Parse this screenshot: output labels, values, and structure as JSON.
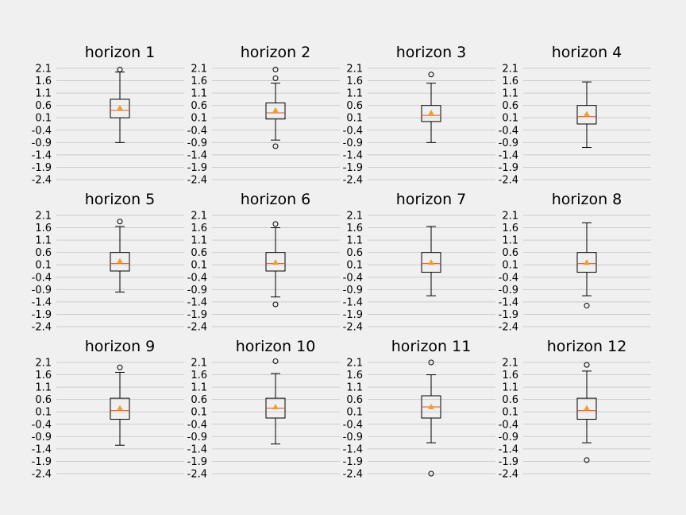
{
  "chart_data": [
    {
      "type": "box",
      "title": "horizon 1",
      "yticks": [
        "2.1",
        "1.6",
        "1.1",
        "0.6",
        "0.1",
        "-0.4",
        "-0.9",
        "-1.4",
        "-1.9",
        "-2.4"
      ],
      "ylim": [
        -2.4,
        2.1
      ],
      "whisker_low": -0.9,
      "q1": 0.1,
      "median": 0.4,
      "q3": 0.85,
      "whisker_high": 1.95,
      "mean": 0.5,
      "outliers": [
        2.05
      ]
    },
    {
      "type": "box",
      "title": "horizon 2",
      "yticks": [
        "2.1",
        "1.6",
        "1.1",
        "0.6",
        "0.1",
        "-0.4",
        "-0.9",
        "-1.4",
        "-1.9",
        "-2.4"
      ],
      "ylim": [
        -2.4,
        2.1
      ],
      "whisker_low": -0.8,
      "q1": 0.05,
      "median": 0.3,
      "q3": 0.7,
      "whisker_high": 1.5,
      "mean": 0.4,
      "outliers": [
        2.05,
        1.7,
        -1.05
      ]
    },
    {
      "type": "box",
      "title": "horizon 3",
      "yticks": [
        "2.1",
        "1.6",
        "1.1",
        "0.6",
        "0.1",
        "-0.4",
        "-0.9",
        "-1.4",
        "-1.9",
        "-2.4"
      ],
      "ylim": [
        -2.4,
        2.1
      ],
      "whisker_low": -0.9,
      "q1": -0.05,
      "median": 0.2,
      "q3": 0.6,
      "whisker_high": 1.5,
      "mean": 0.3,
      "outliers": [
        1.85
      ]
    },
    {
      "type": "box",
      "title": "horizon 4",
      "yticks": [
        "2.1",
        "1.6",
        "1.1",
        "0.6",
        "0.1",
        "-0.4",
        "-0.9",
        "-1.4",
        "-1.9",
        "-2.4"
      ],
      "ylim": [
        -2.4,
        2.1
      ],
      "whisker_low": -1.1,
      "q1": -0.15,
      "median": 0.15,
      "q3": 0.6,
      "whisker_high": 1.55,
      "mean": 0.25,
      "outliers": []
    },
    {
      "type": "box",
      "title": "horizon 5",
      "yticks": [
        "2.1",
        "1.6",
        "1.1",
        "0.6",
        "0.1",
        "-0.4",
        "-0.9",
        "-1.4",
        "-1.9",
        "-2.4"
      ],
      "ylim": [
        -2.4,
        2.1
      ],
      "whisker_low": -1.0,
      "q1": -0.15,
      "median": 0.15,
      "q3": 0.6,
      "whisker_high": 1.65,
      "mean": 0.25,
      "outliers": [
        1.85
      ]
    },
    {
      "type": "box",
      "title": "horizon 6",
      "yticks": [
        "2.1",
        "1.6",
        "1.1",
        "0.6",
        "0.1",
        "-0.4",
        "-0.9",
        "-1.4",
        "-1.9",
        "-2.4"
      ],
      "ylim": [
        -2.4,
        2.1
      ],
      "whisker_low": -1.2,
      "q1": -0.15,
      "median": 0.15,
      "q3": 0.6,
      "whisker_high": 1.6,
      "mean": 0.2,
      "outliers": [
        1.75,
        -1.5
      ]
    },
    {
      "type": "box",
      "title": "horizon 7",
      "yticks": [
        "2.1",
        "1.6",
        "1.1",
        "0.6",
        "0.1",
        "-0.4",
        "-0.9",
        "-1.4",
        "-1.9",
        "-2.4"
      ],
      "ylim": [
        -2.4,
        2.1
      ],
      "whisker_low": -1.15,
      "q1": -0.2,
      "median": 0.15,
      "q3": 0.6,
      "whisker_high": 1.65,
      "mean": 0.2,
      "outliers": []
    },
    {
      "type": "box",
      "title": "horizon 8",
      "yticks": [
        "2.1",
        "1.6",
        "1.1",
        "0.6",
        "0.1",
        "-0.4",
        "-0.9",
        "-1.4",
        "-1.9",
        "-2.4"
      ],
      "ylim": [
        -2.4,
        2.1
      ],
      "whisker_low": -1.15,
      "q1": -0.2,
      "median": 0.15,
      "q3": 0.6,
      "whisker_high": 1.8,
      "mean": 0.2,
      "outliers": [
        -1.55
      ]
    },
    {
      "type": "box",
      "title": "horizon 9",
      "yticks": [
        "2.1",
        "1.6",
        "1.1",
        "0.6",
        "0.1",
        "-0.4",
        "-0.9",
        "-1.4",
        "-1.9",
        "-2.4"
      ],
      "ylim": [
        -2.4,
        2.1
      ],
      "whisker_low": -1.25,
      "q1": -0.2,
      "median": 0.15,
      "q3": 0.65,
      "whisker_high": 1.7,
      "mean": 0.25,
      "outliers": [
        1.9
      ]
    },
    {
      "type": "box",
      "title": "horizon 10",
      "yticks": [
        "2.1",
        "1.6",
        "1.1",
        "0.6",
        "0.1",
        "-0.4",
        "-0.9",
        "-1.4",
        "-1.9",
        "-2.4"
      ],
      "ylim": [
        -2.4,
        2.1
      ],
      "whisker_low": -1.2,
      "q1": -0.15,
      "median": 0.25,
      "q3": 0.65,
      "whisker_high": 1.65,
      "mean": 0.3,
      "outliers": [
        2.15
      ]
    },
    {
      "type": "box",
      "title": "horizon 11",
      "yticks": [
        "2.1",
        "1.6",
        "1.1",
        "0.6",
        "0.1",
        "-0.4",
        "-0.9",
        "-1.4",
        "-1.9",
        "-2.4"
      ],
      "ylim": [
        -2.4,
        2.1
      ],
      "whisker_low": -1.15,
      "q1": -0.15,
      "median": 0.3,
      "q3": 0.75,
      "whisker_high": 1.6,
      "mean": 0.3,
      "outliers": [
        2.1,
        -2.4
      ]
    },
    {
      "type": "box",
      "title": "horizon 12",
      "yticks": [
        "2.1",
        "1.6",
        "1.1",
        "0.6",
        "0.1",
        "-0.4",
        "-0.9",
        "-1.4",
        "-1.9",
        "-2.4"
      ],
      "ylim": [
        -2.4,
        2.1
      ],
      "whisker_low": -1.15,
      "q1": -0.2,
      "median": 0.15,
      "q3": 0.65,
      "whisker_high": 1.75,
      "mean": 0.25,
      "outliers": [
        2.0,
        -1.85
      ]
    }
  ],
  "colors": {
    "median": "#e5541f",
    "mean": "#f0a030",
    "grid": "#cbcbcb",
    "background": "#f0f0f0"
  }
}
